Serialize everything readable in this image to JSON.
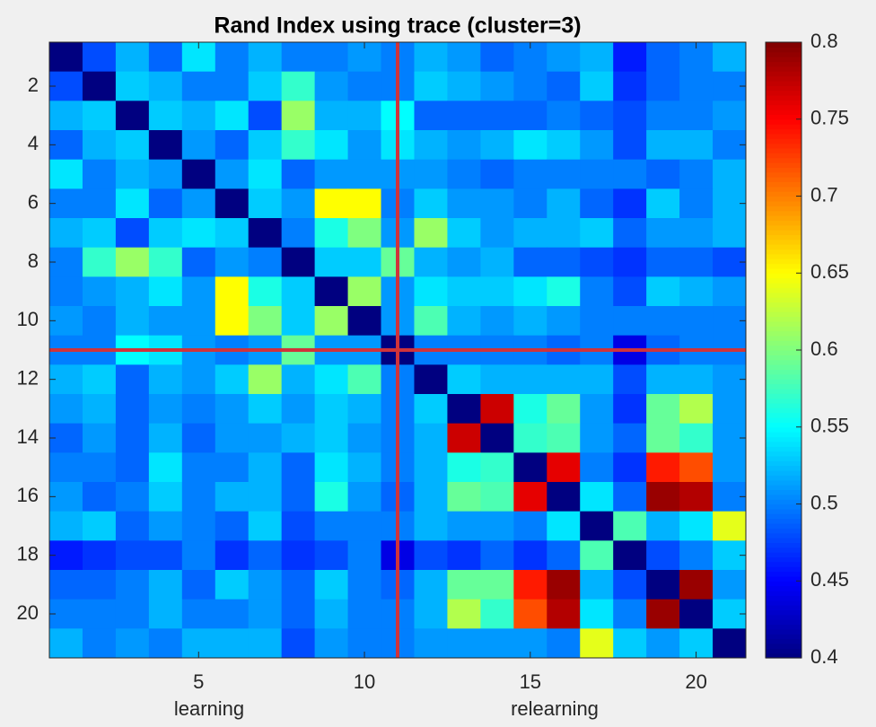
{
  "chart_data": {
    "type": "heatmap",
    "title": "Rand Index using trace (cluster=3)",
    "group_labels": [
      "learning",
      "relearning"
    ],
    "colormap": "jet",
    "xlim": [
      0.5,
      21.5
    ],
    "ylim": [
      0.5,
      21.5
    ],
    "y_reversed": true,
    "xticks": [
      5,
      10,
      15,
      20
    ],
    "yticks": [
      2,
      4,
      6,
      8,
      10,
      12,
      14,
      16,
      18,
      20
    ],
    "clim": [
      0.4,
      0.8
    ],
    "cticks": [
      0.4,
      0.45,
      0.5,
      0.55,
      0.6,
      0.65,
      0.7,
      0.75,
      0.8
    ],
    "reference_lines": {
      "x": 11,
      "y": 11,
      "color": "#d0333a"
    },
    "z": [
      [
        0.4,
        0.48,
        0.52,
        0.49,
        0.54,
        0.5,
        0.52,
        0.5,
        0.5,
        0.51,
        0.5,
        0.52,
        0.51,
        0.49,
        0.5,
        0.51,
        0.52,
        0.46,
        0.49,
        0.5,
        0.52
      ],
      [
        0.48,
        0.4,
        0.53,
        0.52,
        0.5,
        0.5,
        0.53,
        0.57,
        0.51,
        0.5,
        0.5,
        0.53,
        0.52,
        0.51,
        0.5,
        0.49,
        0.53,
        0.47,
        0.49,
        0.5,
        0.5
      ],
      [
        0.52,
        0.53,
        0.4,
        0.53,
        0.52,
        0.54,
        0.48,
        0.61,
        0.52,
        0.52,
        0.55,
        0.49,
        0.49,
        0.49,
        0.49,
        0.5,
        0.49,
        0.48,
        0.5,
        0.5,
        0.51
      ],
      [
        0.49,
        0.52,
        0.53,
        0.4,
        0.51,
        0.49,
        0.53,
        0.57,
        0.54,
        0.51,
        0.54,
        0.52,
        0.51,
        0.52,
        0.54,
        0.53,
        0.51,
        0.48,
        0.52,
        0.52,
        0.5
      ],
      [
        0.54,
        0.5,
        0.52,
        0.51,
        0.4,
        0.51,
        0.54,
        0.49,
        0.51,
        0.51,
        0.51,
        0.51,
        0.5,
        0.49,
        0.5,
        0.5,
        0.5,
        0.5,
        0.49,
        0.5,
        0.52
      ],
      [
        0.5,
        0.5,
        0.54,
        0.49,
        0.51,
        0.4,
        0.53,
        0.51,
        0.65,
        0.65,
        0.5,
        0.53,
        0.51,
        0.51,
        0.5,
        0.52,
        0.49,
        0.47,
        0.53,
        0.5,
        0.52
      ],
      [
        0.52,
        0.53,
        0.48,
        0.53,
        0.54,
        0.53,
        0.4,
        0.5,
        0.56,
        0.6,
        0.51,
        0.61,
        0.53,
        0.51,
        0.52,
        0.52,
        0.53,
        0.49,
        0.51,
        0.51,
        0.52
      ],
      [
        0.5,
        0.57,
        0.61,
        0.57,
        0.49,
        0.51,
        0.5,
        0.4,
        0.53,
        0.53,
        0.59,
        0.52,
        0.51,
        0.52,
        0.49,
        0.49,
        0.48,
        0.47,
        0.49,
        0.49,
        0.48
      ],
      [
        0.5,
        0.51,
        0.52,
        0.54,
        0.51,
        0.65,
        0.56,
        0.53,
        0.4,
        0.61,
        0.51,
        0.54,
        0.53,
        0.53,
        0.54,
        0.56,
        0.5,
        0.48,
        0.53,
        0.52,
        0.51
      ],
      [
        0.51,
        0.5,
        0.52,
        0.51,
        0.51,
        0.65,
        0.6,
        0.53,
        0.61,
        0.4,
        0.51,
        0.58,
        0.52,
        0.51,
        0.52,
        0.51,
        0.5,
        0.5,
        0.5,
        0.5,
        0.5
      ],
      [
        0.5,
        0.5,
        0.55,
        0.54,
        0.51,
        0.5,
        0.51,
        0.59,
        0.51,
        0.51,
        0.4,
        0.5,
        0.5,
        0.5,
        0.5,
        0.49,
        0.5,
        0.44,
        0.49,
        0.5,
        0.5
      ],
      [
        0.52,
        0.53,
        0.49,
        0.52,
        0.51,
        0.53,
        0.61,
        0.52,
        0.54,
        0.58,
        0.5,
        0.4,
        0.53,
        0.52,
        0.52,
        0.52,
        0.52,
        0.48,
        0.52,
        0.52,
        0.51
      ],
      [
        0.51,
        0.52,
        0.49,
        0.51,
        0.5,
        0.51,
        0.53,
        0.51,
        0.53,
        0.52,
        0.5,
        0.53,
        0.4,
        0.77,
        0.56,
        0.59,
        0.51,
        0.47,
        0.59,
        0.62,
        0.51
      ],
      [
        0.49,
        0.51,
        0.49,
        0.52,
        0.49,
        0.51,
        0.51,
        0.52,
        0.53,
        0.51,
        0.5,
        0.52,
        0.77,
        0.4,
        0.57,
        0.58,
        0.51,
        0.49,
        0.59,
        0.57,
        0.51
      ],
      [
        0.5,
        0.5,
        0.49,
        0.54,
        0.5,
        0.5,
        0.52,
        0.49,
        0.54,
        0.52,
        0.5,
        0.52,
        0.56,
        0.57,
        0.4,
        0.76,
        0.5,
        0.47,
        0.74,
        0.72,
        0.51
      ],
      [
        0.51,
        0.49,
        0.5,
        0.53,
        0.5,
        0.52,
        0.52,
        0.49,
        0.56,
        0.51,
        0.49,
        0.52,
        0.59,
        0.58,
        0.76,
        0.4,
        0.54,
        0.49,
        0.79,
        0.78,
        0.5
      ],
      [
        0.52,
        0.53,
        0.49,
        0.51,
        0.5,
        0.49,
        0.53,
        0.48,
        0.5,
        0.5,
        0.5,
        0.52,
        0.51,
        0.51,
        0.5,
        0.54,
        0.4,
        0.58,
        0.52,
        0.54,
        0.64
      ],
      [
        0.46,
        0.47,
        0.48,
        0.48,
        0.5,
        0.47,
        0.49,
        0.47,
        0.48,
        0.5,
        0.44,
        0.48,
        0.47,
        0.49,
        0.47,
        0.49,
        0.58,
        0.4,
        0.48,
        0.5,
        0.53
      ],
      [
        0.49,
        0.49,
        0.5,
        0.52,
        0.49,
        0.53,
        0.51,
        0.49,
        0.53,
        0.5,
        0.49,
        0.52,
        0.59,
        0.59,
        0.74,
        0.79,
        0.52,
        0.48,
        0.4,
        0.79,
        0.51
      ],
      [
        0.5,
        0.5,
        0.5,
        0.52,
        0.5,
        0.5,
        0.51,
        0.49,
        0.52,
        0.5,
        0.5,
        0.52,
        0.62,
        0.57,
        0.72,
        0.78,
        0.54,
        0.5,
        0.79,
        0.4,
        0.53
      ],
      [
        0.52,
        0.5,
        0.51,
        0.5,
        0.52,
        0.52,
        0.52,
        0.48,
        0.51,
        0.5,
        0.5,
        0.51,
        0.51,
        0.51,
        0.51,
        0.5,
        0.64,
        0.53,
        0.51,
        0.53,
        0.4
      ]
    ]
  }
}
